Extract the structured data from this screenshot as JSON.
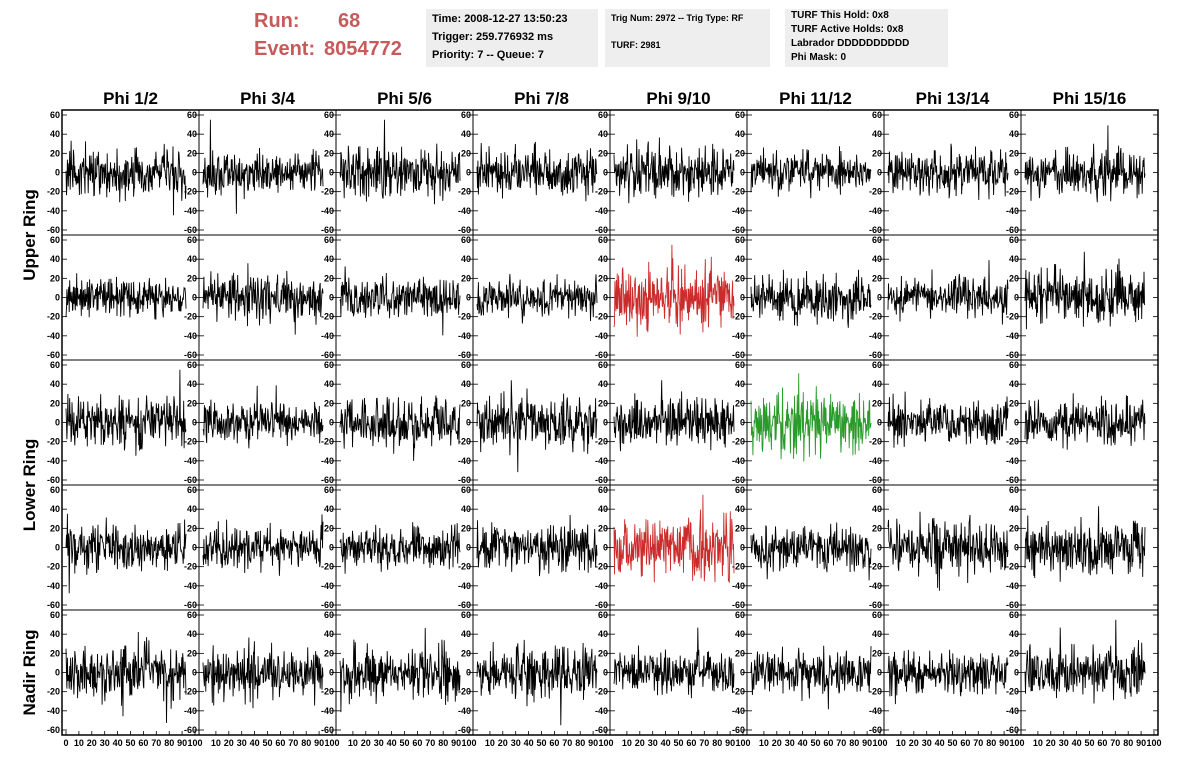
{
  "header": {
    "run_label": "Run:",
    "run_value": "68",
    "event_label": "Event:",
    "event_value": "8054772",
    "time": "Time: 2008-12-27 13:50:23",
    "trigger": "Trigger: 259.776932 ms",
    "priority": "Priority: 7 -- Queue: 7",
    "trig_num": "Trig Num: 2972 -- Trig Type: RF",
    "turf": "TURF: 2981",
    "turf_this_hold": "TURF This Hold: 0x8",
    "turf_active_holds": "TURF Active Holds: 0x8",
    "labrador": "Labrador DDDDDDDDDD",
    "phi_mask": "Phi Mask: 0"
  },
  "colors": {
    "header_red": "#c75a5a",
    "trace_default": "#000000",
    "trace_red": "#cc2b2b",
    "trace_green": "#2a9a2a",
    "info_bg": "#eeeeee"
  },
  "chart_data": {
    "type": "line",
    "columns": [
      "Phi 1/2",
      "Phi 3/4",
      "Phi 5/6",
      "Phi 7/8",
      "Phi 9/10",
      "Phi 11/12",
      "Phi 13/14",
      "Phi 15/16"
    ],
    "ring_labels": [
      {
        "text": "Upper Ring",
        "rows": [
          0,
          1
        ]
      },
      {
        "text": "Lower Ring",
        "rows": [
          2,
          3
        ]
      },
      {
        "text": "Nadir Ring",
        "rows": [
          4,
          4
        ]
      }
    ],
    "rows": 5,
    "xlim": [
      0,
      100
    ],
    "ylim": [
      -60,
      60
    ],
    "x_ticks": [
      "0",
      "10",
      "20",
      "30",
      "40",
      "50",
      "60",
      "70",
      "80",
      "90",
      "100"
    ],
    "y_ticks": [
      60,
      40,
      20,
      0,
      -20,
      -40,
      -60
    ],
    "samples_per_trace": 260,
    "trace_amplitude_range": [
      10,
      14
    ],
    "highlighted": [
      {
        "row": 1,
        "col": 4,
        "color": "red"
      },
      {
        "row": 3,
        "col": 4,
        "color": "red"
      },
      {
        "row": 2,
        "col": 5,
        "color": "green"
      }
    ]
  }
}
